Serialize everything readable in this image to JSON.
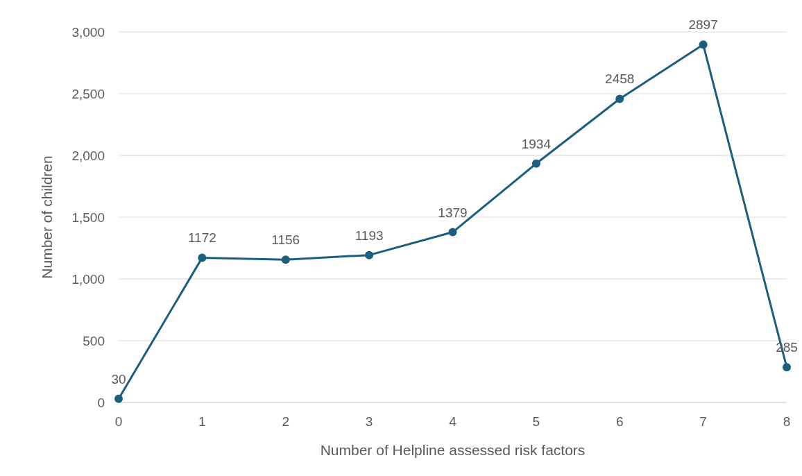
{
  "chart_data": {
    "type": "line",
    "xlabel": "Number of Helpline assessed risk factors",
    "ylabel": "Number of children",
    "x": [
      0,
      1,
      2,
      3,
      4,
      5,
      6,
      7,
      8
    ],
    "series": [
      {
        "color": "#1b5e80",
        "values": [
          30,
          1172,
          1156,
          1193,
          1379,
          1934,
          2458,
          2897,
          285
        ]
      }
    ],
    "xlim": [
      0,
      8
    ],
    "xticks": [
      0,
      1,
      2,
      3,
      4,
      5,
      6,
      7,
      8
    ],
    "ylim": [
      0,
      3000
    ],
    "yticks": [
      {
        "value": 0,
        "label": "0"
      },
      {
        "value": 500,
        "label": "500"
      },
      {
        "value": 1000,
        "label": "1,000"
      },
      {
        "value": 1500,
        "label": "1,500"
      },
      {
        "value": 2000,
        "label": "2,000"
      },
      {
        "value": 2500,
        "label": "2,500"
      },
      {
        "value": 3000,
        "label": "3,000"
      }
    ],
    "grid": "y",
    "marker": "circle",
    "line_style": "solid",
    "data_labels": true
  }
}
